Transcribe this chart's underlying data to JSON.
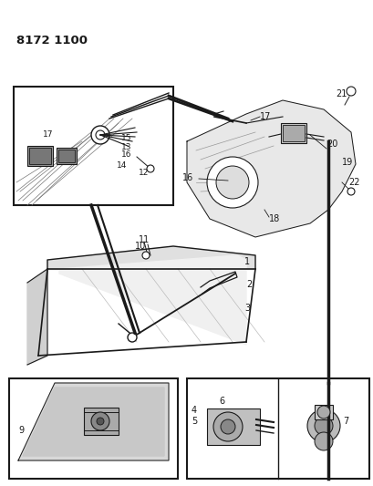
{
  "title_code": "8172 1100",
  "bg_color": "#ffffff",
  "line_color": "#1a1a1a",
  "title_fontsize": 9.5,
  "label_fontsize": 7,
  "fig_width": 4.1,
  "fig_height": 5.33,
  "dpi": 100
}
